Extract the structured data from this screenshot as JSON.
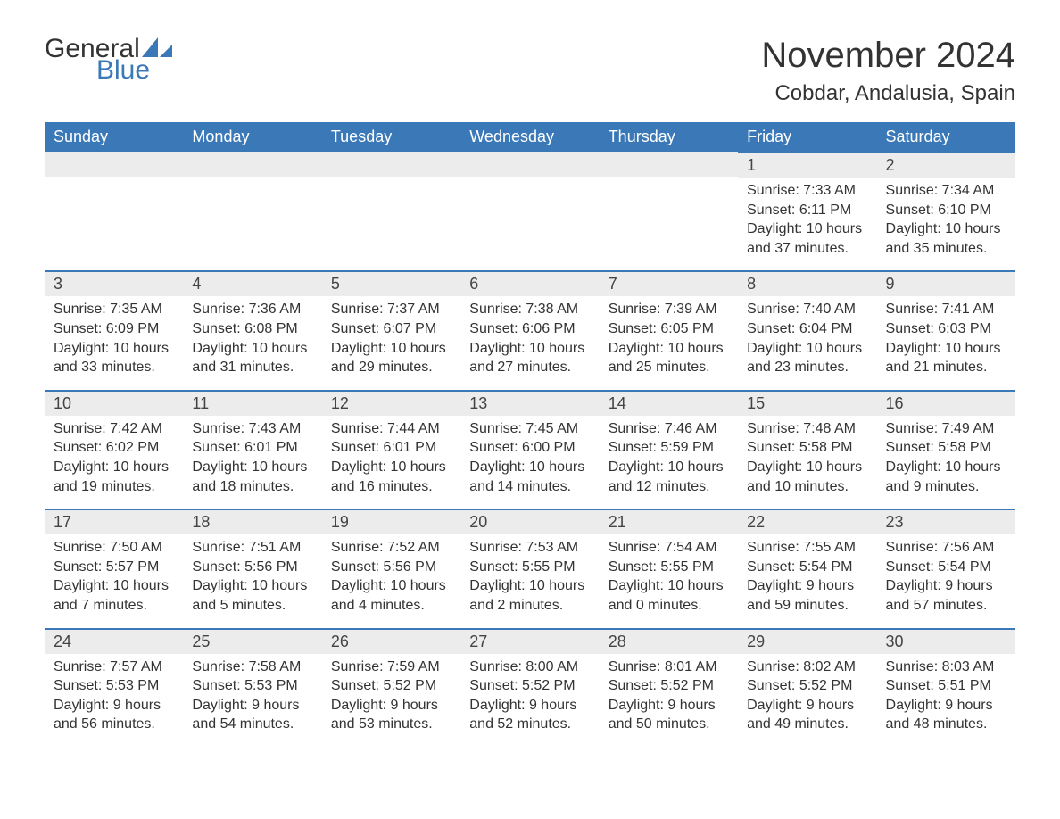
{
  "logo": {
    "general": "General",
    "blue": "Blue",
    "sail_color": "#3a78b7"
  },
  "title": "November 2024",
  "location": "Cobdar, Andalusia, Spain",
  "colors": {
    "header_bg": "#3a78b7",
    "header_text": "#ffffff",
    "daynum_bg": "#ececec",
    "daynum_border": "#3a78b7",
    "body_text": "#333333",
    "background": "#ffffff"
  },
  "typography": {
    "title_fontsize": 40,
    "location_fontsize": 24,
    "dayheader_fontsize": 18,
    "daynum_fontsize": 18,
    "detail_fontsize": 16,
    "font_family": "Arial"
  },
  "day_headers": [
    "Sunday",
    "Monday",
    "Tuesday",
    "Wednesday",
    "Thursday",
    "Friday",
    "Saturday"
  ],
  "weeks": [
    [
      {
        "empty": true
      },
      {
        "empty": true
      },
      {
        "empty": true
      },
      {
        "empty": true
      },
      {
        "empty": true
      },
      {
        "day": "1",
        "sunrise": "Sunrise: 7:33 AM",
        "sunset": "Sunset: 6:11 PM",
        "daylight1": "Daylight: 10 hours",
        "daylight2": "and 37 minutes."
      },
      {
        "day": "2",
        "sunrise": "Sunrise: 7:34 AM",
        "sunset": "Sunset: 6:10 PM",
        "daylight1": "Daylight: 10 hours",
        "daylight2": "and 35 minutes."
      }
    ],
    [
      {
        "day": "3",
        "sunrise": "Sunrise: 7:35 AM",
        "sunset": "Sunset: 6:09 PM",
        "daylight1": "Daylight: 10 hours",
        "daylight2": "and 33 minutes."
      },
      {
        "day": "4",
        "sunrise": "Sunrise: 7:36 AM",
        "sunset": "Sunset: 6:08 PM",
        "daylight1": "Daylight: 10 hours",
        "daylight2": "and 31 minutes."
      },
      {
        "day": "5",
        "sunrise": "Sunrise: 7:37 AM",
        "sunset": "Sunset: 6:07 PM",
        "daylight1": "Daylight: 10 hours",
        "daylight2": "and 29 minutes."
      },
      {
        "day": "6",
        "sunrise": "Sunrise: 7:38 AM",
        "sunset": "Sunset: 6:06 PM",
        "daylight1": "Daylight: 10 hours",
        "daylight2": "and 27 minutes."
      },
      {
        "day": "7",
        "sunrise": "Sunrise: 7:39 AM",
        "sunset": "Sunset: 6:05 PM",
        "daylight1": "Daylight: 10 hours",
        "daylight2": "and 25 minutes."
      },
      {
        "day": "8",
        "sunrise": "Sunrise: 7:40 AM",
        "sunset": "Sunset: 6:04 PM",
        "daylight1": "Daylight: 10 hours",
        "daylight2": "and 23 minutes."
      },
      {
        "day": "9",
        "sunrise": "Sunrise: 7:41 AM",
        "sunset": "Sunset: 6:03 PM",
        "daylight1": "Daylight: 10 hours",
        "daylight2": "and 21 minutes."
      }
    ],
    [
      {
        "day": "10",
        "sunrise": "Sunrise: 7:42 AM",
        "sunset": "Sunset: 6:02 PM",
        "daylight1": "Daylight: 10 hours",
        "daylight2": "and 19 minutes."
      },
      {
        "day": "11",
        "sunrise": "Sunrise: 7:43 AM",
        "sunset": "Sunset: 6:01 PM",
        "daylight1": "Daylight: 10 hours",
        "daylight2": "and 18 minutes."
      },
      {
        "day": "12",
        "sunrise": "Sunrise: 7:44 AM",
        "sunset": "Sunset: 6:01 PM",
        "daylight1": "Daylight: 10 hours",
        "daylight2": "and 16 minutes."
      },
      {
        "day": "13",
        "sunrise": "Sunrise: 7:45 AM",
        "sunset": "Sunset: 6:00 PM",
        "daylight1": "Daylight: 10 hours",
        "daylight2": "and 14 minutes."
      },
      {
        "day": "14",
        "sunrise": "Sunrise: 7:46 AM",
        "sunset": "Sunset: 5:59 PM",
        "daylight1": "Daylight: 10 hours",
        "daylight2": "and 12 minutes."
      },
      {
        "day": "15",
        "sunrise": "Sunrise: 7:48 AM",
        "sunset": "Sunset: 5:58 PM",
        "daylight1": "Daylight: 10 hours",
        "daylight2": "and 10 minutes."
      },
      {
        "day": "16",
        "sunrise": "Sunrise: 7:49 AM",
        "sunset": "Sunset: 5:58 PM",
        "daylight1": "Daylight: 10 hours",
        "daylight2": "and 9 minutes."
      }
    ],
    [
      {
        "day": "17",
        "sunrise": "Sunrise: 7:50 AM",
        "sunset": "Sunset: 5:57 PM",
        "daylight1": "Daylight: 10 hours",
        "daylight2": "and 7 minutes."
      },
      {
        "day": "18",
        "sunrise": "Sunrise: 7:51 AM",
        "sunset": "Sunset: 5:56 PM",
        "daylight1": "Daylight: 10 hours",
        "daylight2": "and 5 minutes."
      },
      {
        "day": "19",
        "sunrise": "Sunrise: 7:52 AM",
        "sunset": "Sunset: 5:56 PM",
        "daylight1": "Daylight: 10 hours",
        "daylight2": "and 4 minutes."
      },
      {
        "day": "20",
        "sunrise": "Sunrise: 7:53 AM",
        "sunset": "Sunset: 5:55 PM",
        "daylight1": "Daylight: 10 hours",
        "daylight2": "and 2 minutes."
      },
      {
        "day": "21",
        "sunrise": "Sunrise: 7:54 AM",
        "sunset": "Sunset: 5:55 PM",
        "daylight1": "Daylight: 10 hours",
        "daylight2": "and 0 minutes."
      },
      {
        "day": "22",
        "sunrise": "Sunrise: 7:55 AM",
        "sunset": "Sunset: 5:54 PM",
        "daylight1": "Daylight: 9 hours",
        "daylight2": "and 59 minutes."
      },
      {
        "day": "23",
        "sunrise": "Sunrise: 7:56 AM",
        "sunset": "Sunset: 5:54 PM",
        "daylight1": "Daylight: 9 hours",
        "daylight2": "and 57 minutes."
      }
    ],
    [
      {
        "day": "24",
        "sunrise": "Sunrise: 7:57 AM",
        "sunset": "Sunset: 5:53 PM",
        "daylight1": "Daylight: 9 hours",
        "daylight2": "and 56 minutes."
      },
      {
        "day": "25",
        "sunrise": "Sunrise: 7:58 AM",
        "sunset": "Sunset: 5:53 PM",
        "daylight1": "Daylight: 9 hours",
        "daylight2": "and 54 minutes."
      },
      {
        "day": "26",
        "sunrise": "Sunrise: 7:59 AM",
        "sunset": "Sunset: 5:52 PM",
        "daylight1": "Daylight: 9 hours",
        "daylight2": "and 53 minutes."
      },
      {
        "day": "27",
        "sunrise": "Sunrise: 8:00 AM",
        "sunset": "Sunset: 5:52 PM",
        "daylight1": "Daylight: 9 hours",
        "daylight2": "and 52 minutes."
      },
      {
        "day": "28",
        "sunrise": "Sunrise: 8:01 AM",
        "sunset": "Sunset: 5:52 PM",
        "daylight1": "Daylight: 9 hours",
        "daylight2": "and 50 minutes."
      },
      {
        "day": "29",
        "sunrise": "Sunrise: 8:02 AM",
        "sunset": "Sunset: 5:52 PM",
        "daylight1": "Daylight: 9 hours",
        "daylight2": "and 49 minutes."
      },
      {
        "day": "30",
        "sunrise": "Sunrise: 8:03 AM",
        "sunset": "Sunset: 5:51 PM",
        "daylight1": "Daylight: 9 hours",
        "daylight2": "and 48 minutes."
      }
    ]
  ]
}
